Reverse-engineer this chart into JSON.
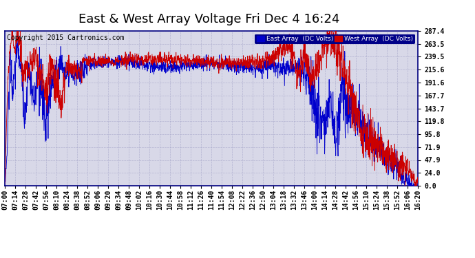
{
  "title": "East & West Array Voltage Fri Dec 4 16:24",
  "copyright": "Copyright 2015 Cartronics.com",
  "legend_east": "East Array  (DC Volts)",
  "legend_west": "West Array  (DC Volts)",
  "east_color": "#0000cc",
  "west_color": "#cc0000",
  "background_color": "#ffffff",
  "plot_bg_color": "#d8d8e8",
  "grid_color": "#aaaacc",
  "yticks": [
    0.0,
    24.0,
    47.9,
    71.9,
    95.8,
    119.8,
    143.7,
    167.7,
    191.6,
    215.6,
    239.5,
    263.5,
    287.4
  ],
  "ymin": 0.0,
  "ymax": 287.4,
  "xtick_labels": [
    "07:00",
    "07:14",
    "07:28",
    "07:42",
    "07:56",
    "08:10",
    "08:24",
    "08:38",
    "08:52",
    "09:06",
    "09:20",
    "09:34",
    "09:48",
    "10:02",
    "10:16",
    "10:30",
    "10:44",
    "10:58",
    "11:12",
    "11:26",
    "11:40",
    "11:54",
    "12:08",
    "12:22",
    "12:36",
    "12:50",
    "13:04",
    "13:18",
    "13:32",
    "13:46",
    "14:00",
    "14:14",
    "14:28",
    "14:42",
    "14:56",
    "15:10",
    "15:24",
    "15:38",
    "15:52",
    "16:06",
    "16:20"
  ],
  "title_fontsize": 13,
  "label_fontsize": 7,
  "copyright_fontsize": 7,
  "figwidth": 6.9,
  "figheight": 3.75,
  "dpi": 100
}
